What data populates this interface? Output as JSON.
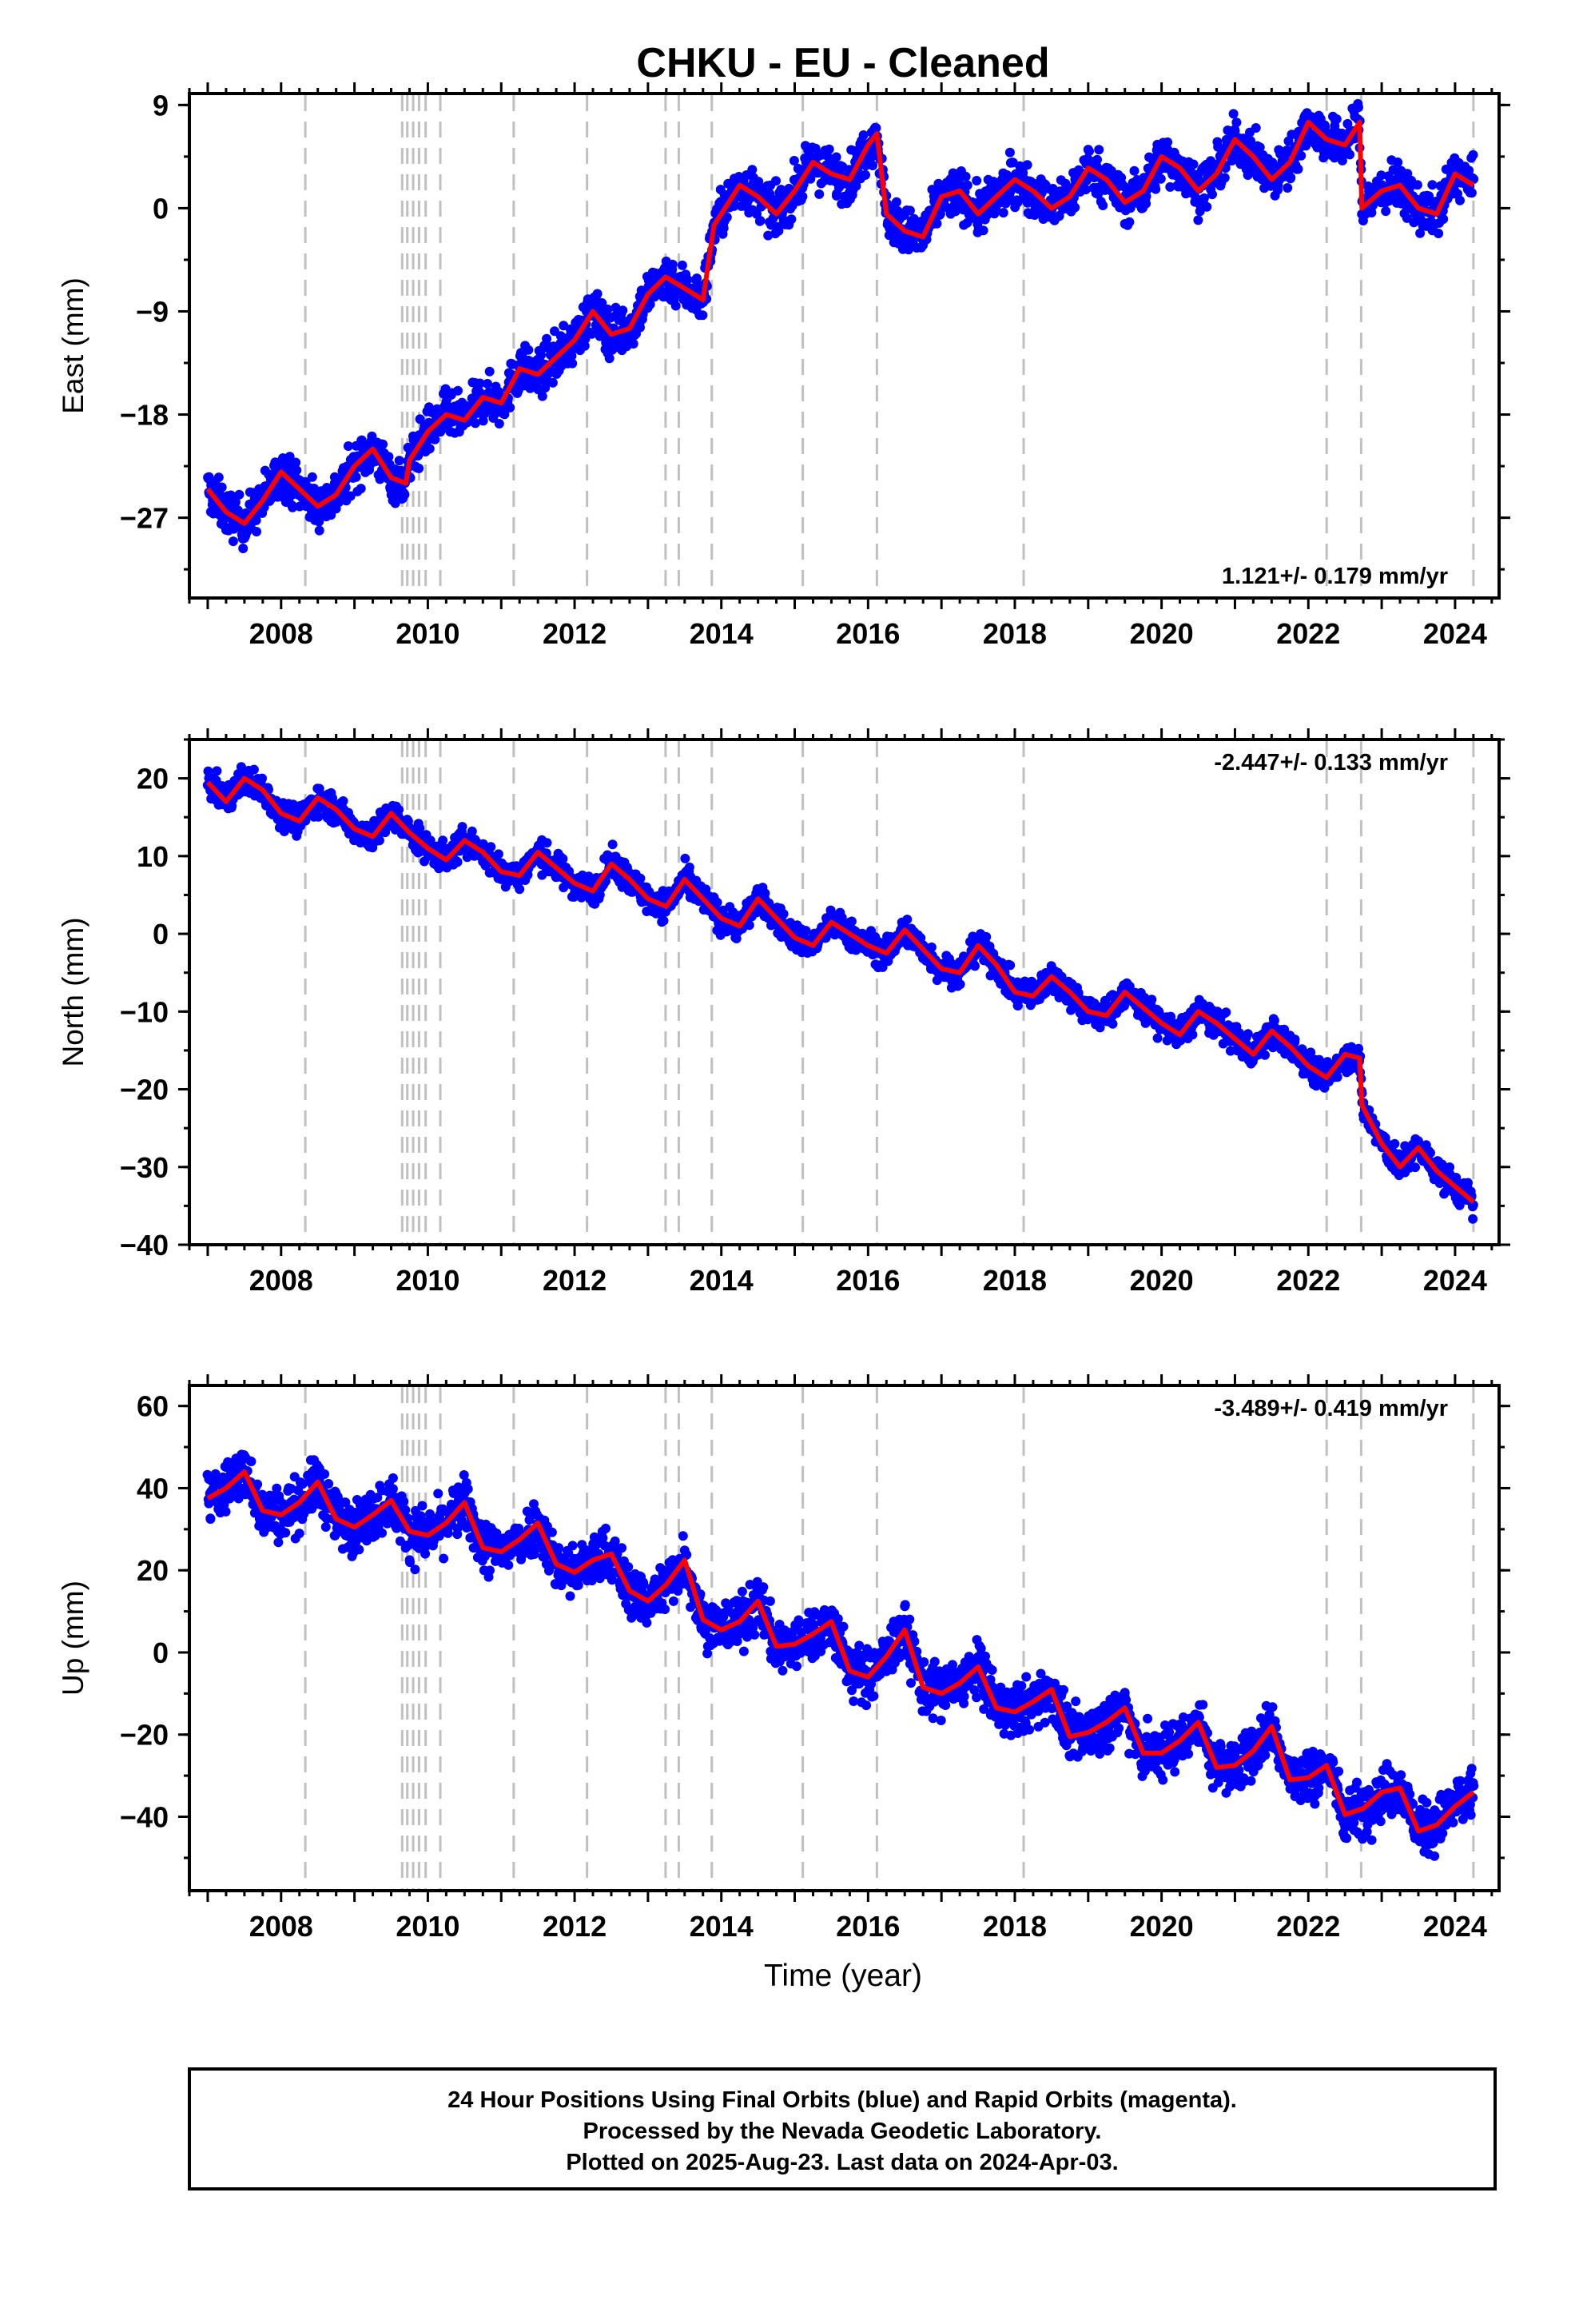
{
  "title": "CHKU  - EU - Cleaned",
  "footer": {
    "lines": [
      "24 Hour Positions Using Final Orbits (blue) and Rapid Orbits (magenta).",
      "Processed by the Nevada Geodetic Laboratory.",
      "Plotted on 2025-Aug-23. Last data on 2024-Apr-03."
    ]
  },
  "colors": {
    "points": "#0000ff",
    "model": "#ff0000",
    "events": "#c0c0c0",
    "frame": "#000000"
  },
  "chart_data": [
    {
      "type": "scatter",
      "ylabel": "East (mm)",
      "xlabel": "",
      "xlim": [
        2006.75,
        2024.6
      ],
      "ylim": [
        -34,
        10
      ],
      "yticks": [
        -27,
        -18,
        -9,
        0,
        9
      ],
      "xticks": [
        2008,
        2010,
        2012,
        2014,
        2016,
        2018,
        2020,
        2022,
        2024
      ],
      "rate": "1.121+/- 0.179 mm/yr",
      "rate_position": "bottom-right",
      "event_lines": [
        2008.33,
        2009.65,
        2009.72,
        2009.8,
        2009.88,
        2009.97,
        2010.17,
        2011.17,
        2012.17,
        2013.24,
        2013.42,
        2013.87,
        2015.11,
        2016.12,
        2018.12,
        2022.25,
        2022.72,
        2024.25
      ],
      "series": [
        {
          "kind": "model",
          "x": [
            2007.0,
            2007.25,
            2007.5,
            2007.75,
            2008.0,
            2008.25,
            2008.5,
            2008.75,
            2009.0,
            2009.25,
            2009.5,
            2009.7,
            2009.75,
            2010.0,
            2010.25,
            2010.5,
            2010.75,
            2011.0,
            2011.17,
            2011.25,
            2011.5,
            2011.75,
            2012.0,
            2012.25,
            2012.5,
            2012.75,
            2013.0,
            2013.24,
            2013.5,
            2013.75,
            2013.9,
            2014.0,
            2014.25,
            2014.5,
            2014.75,
            2015.0,
            2015.25,
            2015.5,
            2015.75,
            2016.0,
            2016.12,
            2016.25,
            2016.5,
            2016.75,
            2017.0,
            2017.25,
            2017.5,
            2017.75,
            2018.0,
            2018.25,
            2018.5,
            2018.75,
            2019.0,
            2019.25,
            2019.5,
            2019.75,
            2020.0,
            2020.25,
            2020.5,
            2020.75,
            2021.0,
            2021.25,
            2021.5,
            2021.75,
            2022.0,
            2022.25,
            2022.5,
            2022.7,
            2022.73,
            2023.0,
            2023.25,
            2023.5,
            2023.75,
            2024.0,
            2024.25
          ],
          "y": [
            -24.5,
            -26.5,
            -27.5,
            -25.5,
            -23.0,
            -24.5,
            -26.0,
            -25.0,
            -22.5,
            -21.0,
            -23.5,
            -24.0,
            -22.0,
            -19.5,
            -18.0,
            -18.5,
            -16.5,
            -17.0,
            -15.0,
            -14.0,
            -14.5,
            -13.0,
            -11.5,
            -9.0,
            -11.0,
            -10.5,
            -7.5,
            -6.0,
            -7.0,
            -8.0,
            -1.5,
            -0.5,
            2.0,
            1.0,
            -0.5,
            1.5,
            4.0,
            3.0,
            2.5,
            5.5,
            6.5,
            -0.5,
            -2.0,
            -2.5,
            1.0,
            1.5,
            -0.5,
            1.0,
            2.5,
            1.5,
            0.0,
            1.0,
            3.5,
            2.5,
            0.5,
            1.5,
            4.5,
            3.5,
            1.5,
            3.0,
            6.0,
            4.5,
            2.5,
            4.0,
            7.5,
            6.0,
            5.5,
            7.5,
            0.0,
            1.5,
            2.0,
            0.0,
            -0.5,
            3.0,
            2.0
          ]
        },
        {
          "kind": "points",
          "scatter_spread": 1.4,
          "note": "daily positions shown as blue dots around the model"
        }
      ]
    },
    {
      "type": "scatter",
      "ylabel": "North (mm)",
      "xlabel": "",
      "xlim": [
        2006.75,
        2024.6
      ],
      "ylim": [
        -40,
        25
      ],
      "yticks": [
        -40,
        -30,
        -20,
        -10,
        0,
        10,
        20
      ],
      "xticks": [
        2008,
        2010,
        2012,
        2014,
        2016,
        2018,
        2020,
        2022,
        2024
      ],
      "rate": "-2.447+/- 0.133 mm/yr",
      "rate_position": "top-right",
      "event_lines": [
        2008.33,
        2009.65,
        2009.72,
        2009.8,
        2009.88,
        2009.97,
        2010.17,
        2011.17,
        2012.17,
        2013.24,
        2013.42,
        2013.87,
        2015.11,
        2016.12,
        2018.12,
        2022.25,
        2022.72,
        2024.25
      ],
      "series": [
        {
          "kind": "model",
          "x": [
            2007.0,
            2007.25,
            2007.5,
            2007.75,
            2008.0,
            2008.25,
            2008.5,
            2008.75,
            2009.0,
            2009.25,
            2009.5,
            2009.75,
            2010.0,
            2010.25,
            2010.5,
            2010.75,
            2011.0,
            2011.25,
            2011.5,
            2011.75,
            2012.0,
            2012.25,
            2012.5,
            2012.75,
            2013.0,
            2013.25,
            2013.5,
            2013.75,
            2014.0,
            2014.25,
            2014.5,
            2014.75,
            2015.0,
            2015.25,
            2015.5,
            2015.75,
            2016.0,
            2016.25,
            2016.5,
            2016.75,
            2017.0,
            2017.25,
            2017.5,
            2017.75,
            2018.0,
            2018.25,
            2018.5,
            2018.75,
            2019.0,
            2019.25,
            2019.5,
            2019.75,
            2020.0,
            2020.25,
            2020.5,
            2020.75,
            2021.0,
            2021.25,
            2021.5,
            2021.75,
            2022.0,
            2022.25,
            2022.5,
            2022.7,
            2022.73,
            2023.0,
            2023.25,
            2023.5,
            2023.75,
            2024.0,
            2024.25
          ],
          "y": [
            19.5,
            17.0,
            20.0,
            18.5,
            15.5,
            14.5,
            17.5,
            16.0,
            13.5,
            12.5,
            15.5,
            13.0,
            11.0,
            9.5,
            12.0,
            10.5,
            8.0,
            7.5,
            10.5,
            8.5,
            6.5,
            5.5,
            9.0,
            7.0,
            4.5,
            3.5,
            7.0,
            4.5,
            2.0,
            1.0,
            4.5,
            2.0,
            -0.5,
            -1.5,
            1.5,
            0.0,
            -1.5,
            -2.5,
            0.5,
            -2.0,
            -4.5,
            -5.0,
            -1.5,
            -4.0,
            -7.5,
            -8.0,
            -5.5,
            -7.5,
            -10.0,
            -10.5,
            -7.5,
            -9.5,
            -11.5,
            -13.0,
            -10.0,
            -11.5,
            -13.5,
            -15.5,
            -12.5,
            -14.5,
            -17.0,
            -18.5,
            -15.5,
            -16.0,
            -22.0,
            -27.0,
            -30.0,
            -27.5,
            -30.5,
            -32.5,
            -34.5
          ]
        },
        {
          "kind": "points",
          "scatter_spread": 1.3,
          "note": "daily positions shown as blue dots around the model"
        }
      ]
    },
    {
      "type": "scatter",
      "ylabel": "Up (mm)",
      "xlabel": "Time (year)",
      "xlim": [
        2006.75,
        2024.6
      ],
      "ylim": [
        -58,
        65
      ],
      "yticks": [
        -40,
        -20,
        0,
        20,
        40,
        60
      ],
      "xticks": [
        2008,
        2010,
        2012,
        2014,
        2016,
        2018,
        2020,
        2022,
        2024
      ],
      "rate": "-3.489+/- 0.419 mm/yr",
      "rate_position": "top-right",
      "event_lines": [
        2008.33,
        2009.65,
        2009.72,
        2009.8,
        2009.88,
        2009.97,
        2010.17,
        2011.17,
        2012.17,
        2013.24,
        2013.42,
        2013.87,
        2015.11,
        2016.12,
        2018.12,
        2022.25,
        2022.72,
        2024.25
      ],
      "series": [
        {
          "kind": "model",
          "x": [
            2007.0,
            2007.25,
            2007.5,
            2007.75,
            2008.0,
            2008.25,
            2008.5,
            2008.75,
            2009.0,
            2009.25,
            2009.5,
            2009.75,
            2010.0,
            2010.25,
            2010.5,
            2010.75,
            2011.0,
            2011.25,
            2011.5,
            2011.75,
            2012.0,
            2012.25,
            2012.5,
            2012.75,
            2013.0,
            2013.25,
            2013.5,
            2013.75,
            2014.0,
            2014.25,
            2014.5,
            2014.75,
            2015.0,
            2015.25,
            2015.5,
            2015.75,
            2016.0,
            2016.25,
            2016.5,
            2016.75,
            2017.0,
            2017.25,
            2017.5,
            2017.75,
            2018.0,
            2018.25,
            2018.5,
            2018.75,
            2019.0,
            2019.25,
            2019.5,
            2019.75,
            2020.0,
            2020.25,
            2020.5,
            2020.75,
            2021.0,
            2021.25,
            2021.5,
            2021.75,
            2022.0,
            2022.25,
            2022.5,
            2022.75,
            2023.0,
            2023.25,
            2023.5,
            2023.75,
            2024.0,
            2024.25
          ],
          "y": [
            37.5,
            40.0,
            44.0,
            34.5,
            33.5,
            36.5,
            41.5,
            32.5,
            30.5,
            33.5,
            37.0,
            29.5,
            28.5,
            31.5,
            36.5,
            25.5,
            24.5,
            27.5,
            31.5,
            21.5,
            19.5,
            22.5,
            24.0,
            15.0,
            12.5,
            16.5,
            22.5,
            8.0,
            5.5,
            7.5,
            12.5,
            1.5,
            2.0,
            4.5,
            7.5,
            -4.5,
            -6.0,
            -1.0,
            5.5,
            -8.5,
            -10.0,
            -7.5,
            -3.5,
            -13.5,
            -14.5,
            -12.0,
            -9.0,
            -20.5,
            -19.5,
            -17.0,
            -13.5,
            -24.5,
            -24.5,
            -21.5,
            -17.0,
            -28.0,
            -27.5,
            -24.0,
            -18.0,
            -31.0,
            -30.5,
            -27.5,
            -39.5,
            -38.0,
            -34.0,
            -33.0,
            -43.5,
            -42.0,
            -37.5,
            -34.0
          ]
        },
        {
          "kind": "points",
          "scatter_spread": 4.5,
          "note": "daily positions shown as blue dots around the model"
        }
      ]
    }
  ]
}
